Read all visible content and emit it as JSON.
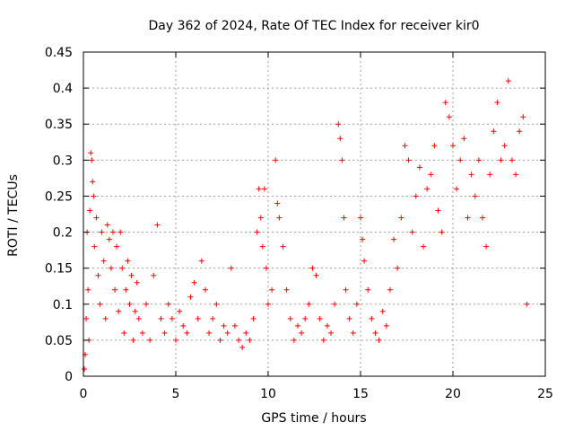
{
  "chart_data": {
    "type": "scatter",
    "title": "Day 362 of 2024, Rate Of TEC Index for receiver kir0",
    "xlabel": "GPS time / hours",
    "ylabel": "ROTI / TECUs",
    "xlim": [
      0,
      25
    ],
    "ylim": [
      0,
      0.45
    ],
    "x_ticks": [
      "0",
      "5",
      "10",
      "15",
      "20",
      "25"
    ],
    "y_ticks": [
      "0",
      "0.05",
      "0.1",
      "0.15",
      "0.2",
      "0.25",
      "0.3",
      "0.35",
      "0.4",
      "0.45"
    ],
    "grid": true,
    "marker": "+",
    "series": [
      {
        "color": "#ff0000",
        "points": [
          [
            0.05,
            0.01
          ],
          [
            0.1,
            0.03
          ],
          [
            0.15,
            0.08
          ],
          [
            0.2,
            0.2
          ],
          [
            0.25,
            0.12
          ],
          [
            0.3,
            0.05
          ],
          [
            0.35,
            0.23
          ],
          [
            0.4,
            0.31
          ],
          [
            0.45,
            0.3
          ],
          [
            0.5,
            0.27
          ],
          [
            0.55,
            0.25
          ],
          [
            0.6,
            0.18
          ],
          [
            0.7,
            0.22
          ],
          [
            0.8,
            0.14
          ],
          [
            0.9,
            0.1
          ],
          [
            1.0,
            0.2
          ],
          [
            1.1,
            0.16
          ],
          [
            1.2,
            0.08
          ],
          [
            1.3,
            0.21
          ],
          [
            1.4,
            0.19
          ],
          [
            1.5,
            0.15
          ],
          [
            1.6,
            0.2
          ],
          [
            1.7,
            0.12
          ],
          [
            1.8,
            0.18
          ],
          [
            1.9,
            0.09
          ],
          [
            2.0,
            0.2
          ],
          [
            2.1,
            0.15
          ],
          [
            2.2,
            0.06
          ],
          [
            2.3,
            0.12
          ],
          [
            2.4,
            0.16
          ],
          [
            2.5,
            0.1
          ],
          [
            2.6,
            0.14
          ],
          [
            2.7,
            0.05
          ],
          [
            2.8,
            0.09
          ],
          [
            2.9,
            0.13
          ],
          [
            3.0,
            0.08
          ],
          [
            3.2,
            0.06
          ],
          [
            3.4,
            0.1
          ],
          [
            3.6,
            0.05
          ],
          [
            3.8,
            0.14
          ],
          [
            4.0,
            0.21
          ],
          [
            4.2,
            0.08
          ],
          [
            4.4,
            0.06
          ],
          [
            4.6,
            0.1
          ],
          [
            4.8,
            0.08
          ],
          [
            5.0,
            0.05
          ],
          [
            5.2,
            0.09
          ],
          [
            5.4,
            0.07
          ],
          [
            5.6,
            0.06
          ],
          [
            5.8,
            0.11
          ],
          [
            6.0,
            0.13
          ],
          [
            6.2,
            0.08
          ],
          [
            6.4,
            0.16
          ],
          [
            6.6,
            0.12
          ],
          [
            6.8,
            0.06
          ],
          [
            7.0,
            0.08
          ],
          [
            7.2,
            0.1
          ],
          [
            7.4,
            0.05
          ],
          [
            7.6,
            0.07
          ],
          [
            7.8,
            0.06
          ],
          [
            8.0,
            0.15
          ],
          [
            8.2,
            0.07
          ],
          [
            8.4,
            0.05
          ],
          [
            8.6,
            0.04
          ],
          [
            8.8,
            0.06
          ],
          [
            9.0,
            0.05
          ],
          [
            9.2,
            0.08
          ],
          [
            9.4,
            0.2
          ],
          [
            9.5,
            0.26
          ],
          [
            9.6,
            0.22
          ],
          [
            9.7,
            0.18
          ],
          [
            9.8,
            0.26
          ],
          [
            9.9,
            0.15
          ],
          [
            10.0,
            0.1
          ],
          [
            10.2,
            0.12
          ],
          [
            10.4,
            0.3
          ],
          [
            10.5,
            0.24
          ],
          [
            10.6,
            0.22
          ],
          [
            10.8,
            0.18
          ],
          [
            11.0,
            0.12
          ],
          [
            11.2,
            0.08
          ],
          [
            11.4,
            0.05
          ],
          [
            11.6,
            0.07
          ],
          [
            11.8,
            0.06
          ],
          [
            12.0,
            0.08
          ],
          [
            12.2,
            0.1
          ],
          [
            12.4,
            0.15
          ],
          [
            12.6,
            0.14
          ],
          [
            12.8,
            0.08
          ],
          [
            13.0,
            0.05
          ],
          [
            13.2,
            0.07
          ],
          [
            13.4,
            0.06
          ],
          [
            13.6,
            0.1
          ],
          [
            13.8,
            0.35
          ],
          [
            13.9,
            0.33
          ],
          [
            14.0,
            0.3
          ],
          [
            14.1,
            0.22
          ],
          [
            14.2,
            0.12
          ],
          [
            14.4,
            0.08
          ],
          [
            14.6,
            0.06
          ],
          [
            14.8,
            0.1
          ],
          [
            15.0,
            0.22
          ],
          [
            15.1,
            0.19
          ],
          [
            15.2,
            0.16
          ],
          [
            15.4,
            0.12
          ],
          [
            15.6,
            0.08
          ],
          [
            15.8,
            0.06
          ],
          [
            16.0,
            0.05
          ],
          [
            16.2,
            0.09
          ],
          [
            16.4,
            0.07
          ],
          [
            16.6,
            0.12
          ],
          [
            16.8,
            0.19
          ],
          [
            17.0,
            0.15
          ],
          [
            17.2,
            0.22
          ],
          [
            17.4,
            0.32
          ],
          [
            17.6,
            0.3
          ],
          [
            17.8,
            0.2
          ],
          [
            18.0,
            0.25
          ],
          [
            18.2,
            0.29
          ],
          [
            18.4,
            0.18
          ],
          [
            18.6,
            0.26
          ],
          [
            18.8,
            0.28
          ],
          [
            19.0,
            0.32
          ],
          [
            19.2,
            0.23
          ],
          [
            19.4,
            0.2
          ],
          [
            19.6,
            0.38
          ],
          [
            19.8,
            0.36
          ],
          [
            20.0,
            0.32
          ],
          [
            20.2,
            0.26
          ],
          [
            20.4,
            0.3
          ],
          [
            20.6,
            0.33
          ],
          [
            20.8,
            0.22
          ],
          [
            21.0,
            0.28
          ],
          [
            21.2,
            0.25
          ],
          [
            21.4,
            0.3
          ],
          [
            21.6,
            0.22
          ],
          [
            21.8,
            0.18
          ],
          [
            22.0,
            0.28
          ],
          [
            22.2,
            0.34
          ],
          [
            22.4,
            0.38
          ],
          [
            22.6,
            0.3
          ],
          [
            22.8,
            0.32
          ],
          [
            23.0,
            0.41
          ],
          [
            23.2,
            0.3
          ],
          [
            23.4,
            0.28
          ],
          [
            23.6,
            0.34
          ],
          [
            23.8,
            0.36
          ],
          [
            24.0,
            0.1
          ]
        ]
      }
    ]
  }
}
